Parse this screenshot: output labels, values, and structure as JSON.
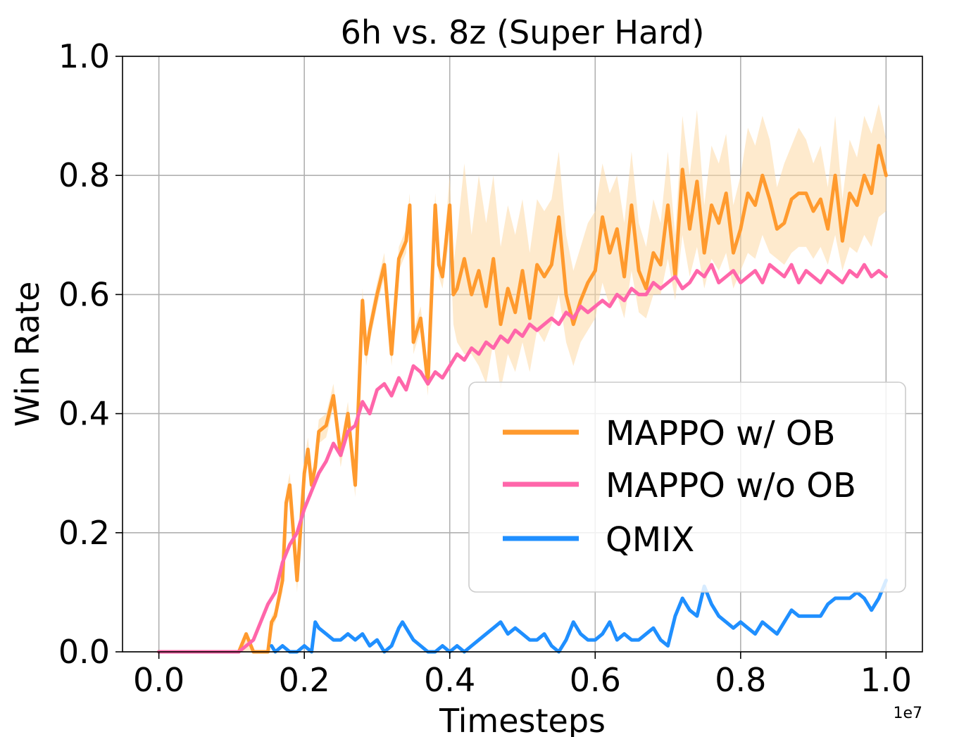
{
  "chart_data": {
    "type": "line",
    "title": "6h vs. 8z (Super Hard)",
    "xlabel": "Timesteps",
    "ylabel": "Win Rate",
    "x_offset_label": "1e7",
    "xlim": [
      -0.05,
      1.05
    ],
    "ylim": [
      0.0,
      1.0
    ],
    "xticks": [
      "0.0",
      "0.2",
      "0.4",
      "0.6",
      "0.8",
      "1.0"
    ],
    "yticks": [
      "0.0",
      "0.2",
      "0.4",
      "0.6",
      "0.8",
      "1.0"
    ],
    "grid": true,
    "legend_position": "lower-right",
    "series": [
      {
        "name": "MAPPO w/ OB",
        "color": "#ff9a2e",
        "band_color": "#fdd9a4",
        "x": [
          0.0,
          0.05,
          0.1,
          0.11,
          0.12,
          0.13,
          0.14,
          0.15,
          0.155,
          0.16,
          0.17,
          0.175,
          0.18,
          0.185,
          0.19,
          0.2,
          0.205,
          0.21,
          0.215,
          0.22,
          0.23,
          0.24,
          0.25,
          0.26,
          0.27,
          0.28,
          0.285,
          0.29,
          0.3,
          0.31,
          0.32,
          0.33,
          0.34,
          0.345,
          0.35,
          0.36,
          0.37,
          0.38,
          0.385,
          0.39,
          0.4,
          0.405,
          0.41,
          0.42,
          0.43,
          0.44,
          0.45,
          0.46,
          0.47,
          0.48,
          0.49,
          0.5,
          0.51,
          0.52,
          0.53,
          0.54,
          0.55,
          0.56,
          0.57,
          0.58,
          0.59,
          0.6,
          0.61,
          0.62,
          0.63,
          0.64,
          0.65,
          0.66,
          0.67,
          0.68,
          0.69,
          0.7,
          0.71,
          0.72,
          0.73,
          0.74,
          0.75,
          0.76,
          0.77,
          0.78,
          0.79,
          0.8,
          0.81,
          0.82,
          0.83,
          0.84,
          0.85,
          0.86,
          0.87,
          0.88,
          0.89,
          0.9,
          0.91,
          0.92,
          0.93,
          0.94,
          0.95,
          0.96,
          0.97,
          0.98,
          0.99,
          1.0
        ],
        "y": [
          0.0,
          0.0,
          0.0,
          0.0,
          0.03,
          0.0,
          0.0,
          0.0,
          0.05,
          0.06,
          0.12,
          0.25,
          0.28,
          0.2,
          0.12,
          0.3,
          0.34,
          0.28,
          0.31,
          0.37,
          0.38,
          0.43,
          0.33,
          0.4,
          0.28,
          0.59,
          0.5,
          0.54,
          0.6,
          0.65,
          0.5,
          0.66,
          0.69,
          0.75,
          0.52,
          0.56,
          0.45,
          0.75,
          0.65,
          0.63,
          0.75,
          0.6,
          0.61,
          0.66,
          0.6,
          0.64,
          0.58,
          0.66,
          0.55,
          0.61,
          0.57,
          0.64,
          0.56,
          0.65,
          0.63,
          0.65,
          0.73,
          0.6,
          0.55,
          0.59,
          0.62,
          0.64,
          0.73,
          0.67,
          0.71,
          0.63,
          0.75,
          0.64,
          0.61,
          0.67,
          0.65,
          0.75,
          0.63,
          0.81,
          0.71,
          0.79,
          0.67,
          0.75,
          0.72,
          0.77,
          0.67,
          0.71,
          0.77,
          0.75,
          0.8,
          0.76,
          0.71,
          0.72,
          0.76,
          0.77,
          0.77,
          0.74,
          0.76,
          0.71,
          0.8,
          0.69,
          0.77,
          0.75,
          0.8,
          0.77,
          0.85,
          0.8
        ],
        "band_lower": [
          0.0,
          0.0,
          0.0,
          0.0,
          0.0,
          0.0,
          0.0,
          0.0,
          0.04,
          0.05,
          0.1,
          0.23,
          0.26,
          0.18,
          0.1,
          0.28,
          0.32,
          0.26,
          0.29,
          0.35,
          0.36,
          0.41,
          0.31,
          0.38,
          0.26,
          0.57,
          0.48,
          0.52,
          0.58,
          0.63,
          0.48,
          0.64,
          0.67,
          0.73,
          0.5,
          0.54,
          0.43,
          0.73,
          0.63,
          0.61,
          0.7,
          0.55,
          0.52,
          0.5,
          0.5,
          0.48,
          0.45,
          0.52,
          0.44,
          0.5,
          0.47,
          0.52,
          0.47,
          0.54,
          0.52,
          0.55,
          0.6,
          0.52,
          0.48,
          0.52,
          0.54,
          0.56,
          0.62,
          0.58,
          0.6,
          0.56,
          0.64,
          0.57,
          0.56,
          0.6,
          0.6,
          0.66,
          0.59,
          0.7,
          0.63,
          0.68,
          0.61,
          0.66,
          0.64,
          0.67,
          0.61,
          0.64,
          0.67,
          0.66,
          0.7,
          0.67,
          0.66,
          0.65,
          0.67,
          0.68,
          0.68,
          0.66,
          0.68,
          0.65,
          0.7,
          0.64,
          0.68,
          0.67,
          0.7,
          0.68,
          0.73,
          0.74
        ],
        "band_upper": [
          0.0,
          0.0,
          0.0,
          0.0,
          0.03,
          0.0,
          0.0,
          0.0,
          0.06,
          0.07,
          0.14,
          0.27,
          0.3,
          0.22,
          0.14,
          0.32,
          0.36,
          0.3,
          0.33,
          0.39,
          0.4,
          0.45,
          0.35,
          0.42,
          0.3,
          0.61,
          0.52,
          0.56,
          0.62,
          0.67,
          0.52,
          0.68,
          0.71,
          0.77,
          0.54,
          0.58,
          0.47,
          0.77,
          0.67,
          0.65,
          0.8,
          0.65,
          0.7,
          0.82,
          0.7,
          0.8,
          0.72,
          0.8,
          0.68,
          0.75,
          0.7,
          0.76,
          0.67,
          0.76,
          0.74,
          0.76,
          0.84,
          0.7,
          0.64,
          0.68,
          0.72,
          0.74,
          0.82,
          0.77,
          0.8,
          0.72,
          0.84,
          0.72,
          0.68,
          0.76,
          0.72,
          0.84,
          0.7,
          0.9,
          0.8,
          0.91,
          0.75,
          0.85,
          0.82,
          0.87,
          0.75,
          0.8,
          0.88,
          0.85,
          0.9,
          0.86,
          0.78,
          0.82,
          0.85,
          0.88,
          0.86,
          0.82,
          0.85,
          0.78,
          0.9,
          0.76,
          0.86,
          0.83,
          0.9,
          0.87,
          0.92,
          0.86
        ]
      },
      {
        "name": "MAPPO w/o OB",
        "color": "#ff66aa",
        "x": [
          0.0,
          0.05,
          0.1,
          0.11,
          0.12,
          0.13,
          0.14,
          0.15,
          0.16,
          0.17,
          0.18,
          0.19,
          0.2,
          0.21,
          0.22,
          0.23,
          0.24,
          0.25,
          0.26,
          0.27,
          0.28,
          0.29,
          0.3,
          0.31,
          0.32,
          0.33,
          0.34,
          0.35,
          0.36,
          0.37,
          0.38,
          0.39,
          0.4,
          0.41,
          0.42,
          0.43,
          0.44,
          0.45,
          0.46,
          0.47,
          0.48,
          0.49,
          0.5,
          0.51,
          0.52,
          0.53,
          0.54,
          0.55,
          0.56,
          0.57,
          0.58,
          0.59,
          0.6,
          0.61,
          0.62,
          0.63,
          0.64,
          0.65,
          0.66,
          0.67,
          0.68,
          0.69,
          0.7,
          0.71,
          0.72,
          0.73,
          0.74,
          0.75,
          0.76,
          0.77,
          0.78,
          0.79,
          0.8,
          0.81,
          0.82,
          0.83,
          0.84,
          0.85,
          0.86,
          0.87,
          0.88,
          0.89,
          0.9,
          0.91,
          0.92,
          0.93,
          0.94,
          0.95,
          0.96,
          0.97,
          0.98,
          0.99,
          1.0
        ],
        "y": [
          0.0,
          0.0,
          0.0,
          0.0,
          0.01,
          0.02,
          0.05,
          0.08,
          0.1,
          0.15,
          0.18,
          0.2,
          0.24,
          0.27,
          0.3,
          0.32,
          0.35,
          0.33,
          0.37,
          0.38,
          0.42,
          0.4,
          0.44,
          0.45,
          0.43,
          0.46,
          0.44,
          0.48,
          0.47,
          0.45,
          0.47,
          0.46,
          0.48,
          0.5,
          0.49,
          0.51,
          0.5,
          0.52,
          0.51,
          0.53,
          0.52,
          0.54,
          0.53,
          0.55,
          0.54,
          0.55,
          0.56,
          0.55,
          0.57,
          0.56,
          0.58,
          0.57,
          0.58,
          0.59,
          0.58,
          0.6,
          0.59,
          0.61,
          0.6,
          0.6,
          0.62,
          0.61,
          0.62,
          0.63,
          0.61,
          0.62,
          0.64,
          0.63,
          0.65,
          0.62,
          0.63,
          0.64,
          0.62,
          0.63,
          0.64,
          0.62,
          0.65,
          0.64,
          0.63,
          0.65,
          0.62,
          0.64,
          0.63,
          0.62,
          0.64,
          0.63,
          0.62,
          0.64,
          0.63,
          0.65,
          0.63,
          0.64,
          0.63
        ]
      },
      {
        "name": "QMIX",
        "color": "#1f8fff",
        "x": [
          0.155,
          0.16,
          0.17,
          0.18,
          0.19,
          0.2,
          0.21,
          0.215,
          0.22,
          0.23,
          0.24,
          0.25,
          0.26,
          0.27,
          0.28,
          0.29,
          0.3,
          0.31,
          0.32,
          0.33,
          0.335,
          0.34,
          0.35,
          0.36,
          0.37,
          0.38,
          0.39,
          0.4,
          0.41,
          0.42,
          0.43,
          0.44,
          0.45,
          0.46,
          0.47,
          0.48,
          0.49,
          0.5,
          0.51,
          0.52,
          0.53,
          0.54,
          0.55,
          0.56,
          0.57,
          0.58,
          0.59,
          0.6,
          0.61,
          0.62,
          0.63,
          0.64,
          0.65,
          0.66,
          0.67,
          0.68,
          0.69,
          0.7,
          0.71,
          0.72,
          0.73,
          0.74,
          0.75,
          0.76,
          0.77,
          0.78,
          0.79,
          0.8,
          0.81,
          0.82,
          0.83,
          0.84,
          0.85,
          0.86,
          0.87,
          0.88,
          0.89,
          0.9,
          0.91,
          0.92,
          0.93,
          0.94,
          0.95,
          0.96,
          0.97,
          0.98,
          0.99,
          1.0
        ],
        "y": [
          0.01,
          0.0,
          0.01,
          0.0,
          0.0,
          0.01,
          0.0,
          0.05,
          0.04,
          0.03,
          0.02,
          0.02,
          0.03,
          0.02,
          0.03,
          0.01,
          0.02,
          0.0,
          0.01,
          0.04,
          0.05,
          0.04,
          0.02,
          0.01,
          0.0,
          0.0,
          0.01,
          0.0,
          0.01,
          0.0,
          0.01,
          0.02,
          0.03,
          0.04,
          0.05,
          0.03,
          0.04,
          0.03,
          0.02,
          0.02,
          0.03,
          0.01,
          0.0,
          0.02,
          0.05,
          0.03,
          0.02,
          0.02,
          0.03,
          0.05,
          0.02,
          0.03,
          0.02,
          0.02,
          0.03,
          0.04,
          0.02,
          0.01,
          0.06,
          0.09,
          0.07,
          0.06,
          0.11,
          0.08,
          0.06,
          0.05,
          0.04,
          0.05,
          0.04,
          0.03,
          0.05,
          0.04,
          0.03,
          0.05,
          0.07,
          0.06,
          0.06,
          0.06,
          0.06,
          0.08,
          0.09,
          0.09,
          0.09,
          0.1,
          0.09,
          0.07,
          0.09,
          0.12
        ]
      }
    ]
  }
}
